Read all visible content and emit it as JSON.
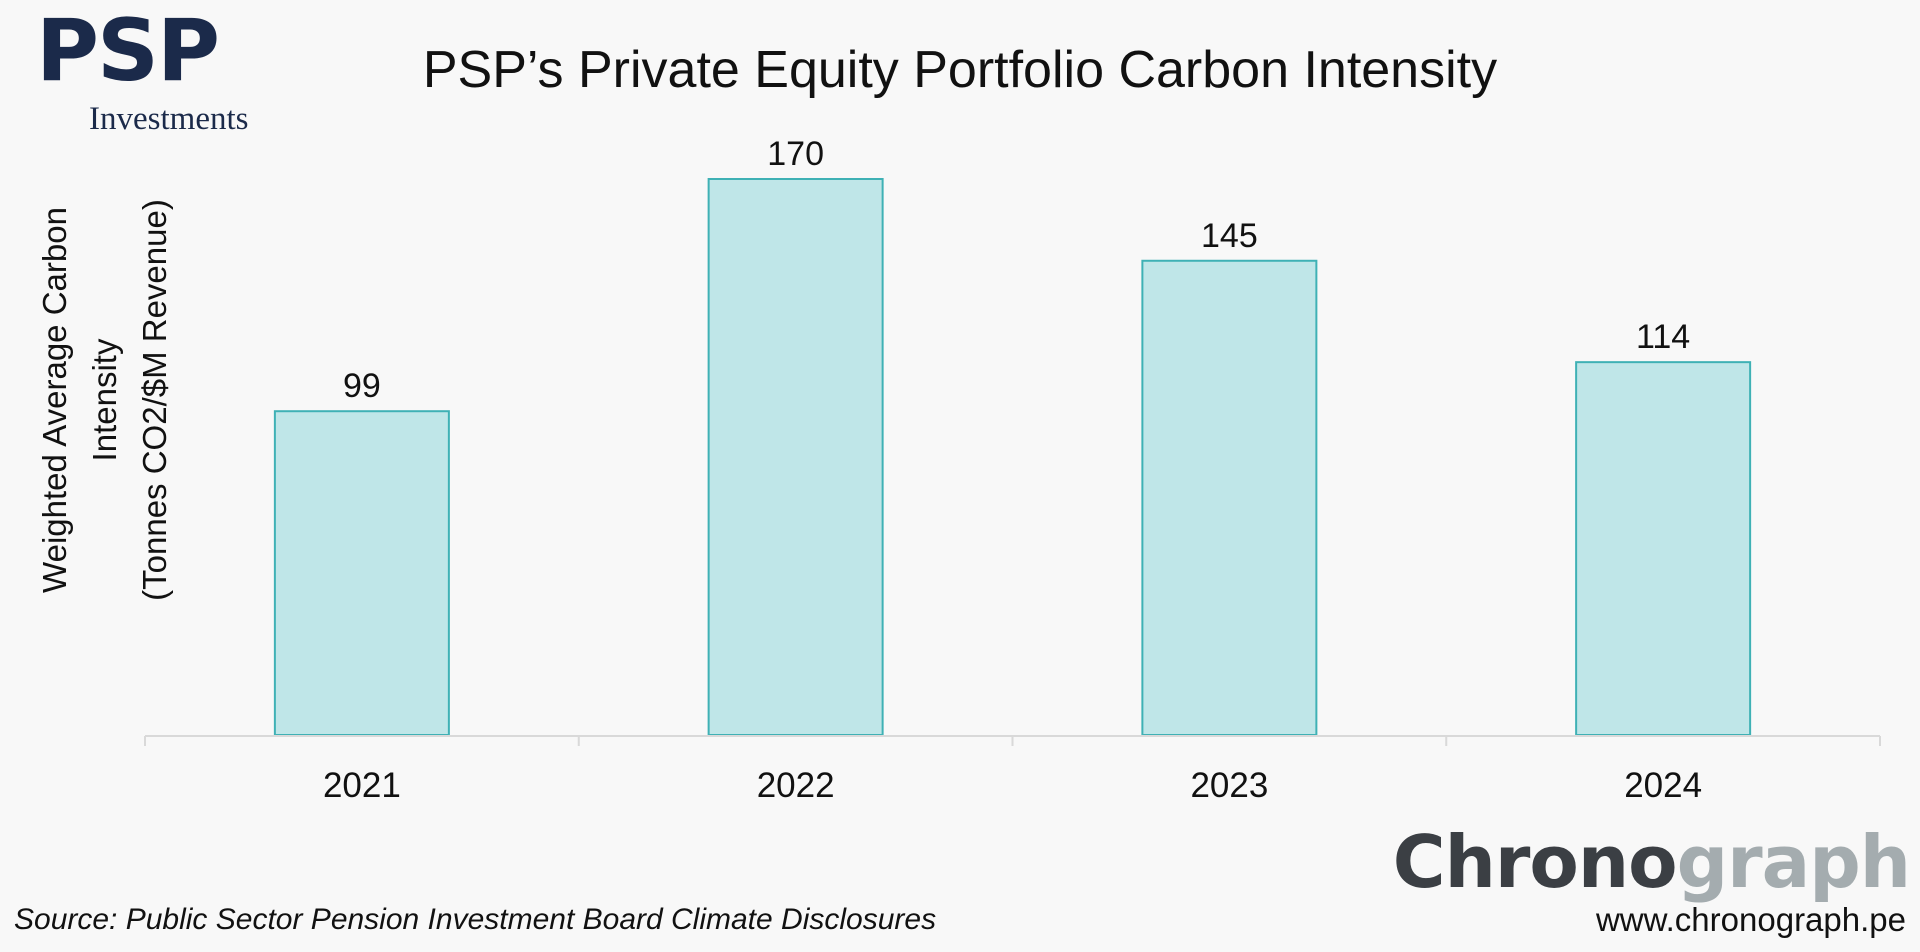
{
  "logo": {
    "mark": "PSP",
    "subtitle": "Investments"
  },
  "chart_data": {
    "type": "bar",
    "title": "PSP’s Private Equity Portfolio Carbon Intensity",
    "ylabel_lines": [
      "Weighted Average Carbon",
      "Intensity",
      "(Tonnes CO2/$M Revenue)"
    ],
    "xlabel": "",
    "categories": [
      "2021",
      "2022",
      "2023",
      "2024"
    ],
    "values": [
      99,
      170,
      145,
      114
    ],
    "data_labels": [
      "99",
      "170",
      "145",
      "114"
    ],
    "ylim": [
      0,
      170
    ],
    "grid": false,
    "legend": "none",
    "colors": {
      "bar_fill": "#bfe6e8",
      "bar_stroke": "#3fb1b5",
      "axis": "#d9d9d9"
    }
  },
  "footer": {
    "source": "Source: Public Sector Pension Investment Board Climate Disclosures",
    "brand_part1": "Chrono",
    "brand_part2": "graph",
    "website": "www.chronograph.pe"
  }
}
